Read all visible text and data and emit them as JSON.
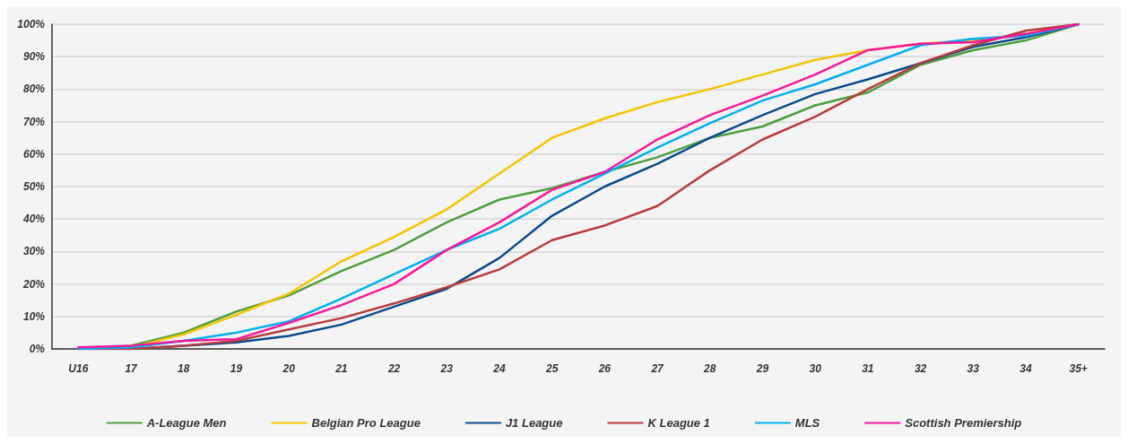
{
  "chart_data": {
    "type": "line",
    "categories": [
      "U16",
      "17",
      "18",
      "19",
      "20",
      "21",
      "22",
      "23",
      "24",
      "25",
      "26",
      "27",
      "28",
      "29",
      "30",
      "31",
      "32",
      "33",
      "34",
      "35+"
    ],
    "ylim": [
      0,
      100
    ],
    "yticks": [
      {
        "value": 0,
        "label": "0%"
      },
      {
        "value": 10,
        "label": "10%"
      },
      {
        "value": 20,
        "label": "20%"
      },
      {
        "value": 30,
        "label": "30%"
      },
      {
        "value": 40,
        "label": "40%"
      },
      {
        "value": 50,
        "label": "50%"
      },
      {
        "value": 60,
        "label": "60%"
      },
      {
        "value": 70,
        "label": "70%"
      },
      {
        "value": 80,
        "label": "80%"
      },
      {
        "value": 90,
        "label": "90%"
      },
      {
        "value": 100,
        "label": "100%"
      }
    ],
    "grid": "y",
    "legend": "bottom",
    "marker": "none",
    "line_style": "solid",
    "series": [
      {
        "name": "A-League Men",
        "color": "#4e9e3f",
        "values": [
          0,
          1,
          5,
          11.5,
          16.5,
          24,
          30.5,
          39,
          46,
          49.5,
          54.5,
          59,
          65,
          68.5,
          75,
          79,
          87.5,
          92,
          95,
          100
        ]
      },
      {
        "name": "Belgian Pro League",
        "color": "#f5c400",
        "values": [
          0,
          0.5,
          4.5,
          10.5,
          17,
          27,
          34.5,
          43,
          54,
          65,
          71,
          76,
          80,
          84.5,
          89,
          92,
          94,
          95,
          97,
          100
        ]
      },
      {
        "name": "J1 League",
        "color": "#0b4a8b",
        "values": [
          0,
          0,
          1,
          2,
          4,
          7.5,
          13,
          18.5,
          28,
          41,
          50,
          57,
          65,
          72,
          78.5,
          83,
          88,
          93,
          96,
          100
        ]
      },
      {
        "name": "K League 1",
        "color": "#b83c3c",
        "values": [
          0,
          0,
          1,
          2.5,
          6,
          9.5,
          14,
          19,
          24.5,
          33.5,
          38,
          44,
          55,
          64.5,
          71.5,
          80,
          88,
          93.5,
          98,
          100
        ]
      },
      {
        "name": "MLS",
        "color": "#00b0f0",
        "values": [
          0,
          0.5,
          2.5,
          5,
          8.5,
          15.5,
          23,
          30.5,
          37,
          46,
          54,
          62,
          69.5,
          76.5,
          81.5,
          87.5,
          93.5,
          95.5,
          96.5,
          100
        ]
      },
      {
        "name": "Scottish Premiership",
        "color": "#f7189a",
        "values": [
          0.5,
          1,
          2.5,
          3,
          8,
          13.5,
          20,
          30.5,
          39,
          49,
          54.5,
          64.5,
          72,
          78,
          84.5,
          92,
          94,
          94.5,
          97,
          100
        ]
      }
    ]
  }
}
